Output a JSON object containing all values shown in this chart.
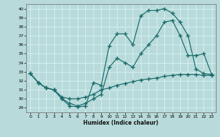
{
  "xlabel": "Humidex (Indice chaleur)",
  "background_color": "#b8dada",
  "grid_color": "#d4eeee",
  "line_color": "#1a6b6b",
  "xlim": [
    -0.5,
    23.5
  ],
  "ylim": [
    28.5,
    40.5
  ],
  "yticks": [
    29,
    30,
    31,
    32,
    33,
    34,
    35,
    36,
    37,
    38,
    39,
    40
  ],
  "xticks": [
    0,
    1,
    2,
    3,
    4,
    5,
    6,
    7,
    8,
    9,
    10,
    11,
    12,
    13,
    14,
    15,
    16,
    17,
    18,
    19,
    20,
    21,
    22,
    23
  ],
  "line1_y": [
    32.8,
    31.8,
    31.2,
    31.0,
    30.0,
    29.2,
    29.1,
    29.2,
    31.8,
    31.5,
    35.9,
    37.2,
    37.2,
    36.0,
    39.2,
    39.8,
    39.8,
    40.0,
    39.5,
    38.5,
    37.0,
    33.3,
    32.8,
    32.7
  ],
  "line2_y": [
    32.8,
    31.8,
    31.2,
    31.0,
    30.0,
    29.5,
    29.2,
    29.5,
    30.0,
    30.5,
    33.5,
    34.5,
    34.0,
    33.5,
    35.0,
    36.0,
    37.0,
    38.5,
    38.7,
    37.0,
    34.8,
    34.8,
    35.0,
    32.7
  ],
  "line3_y": [
    32.8,
    31.8,
    31.2,
    31.0,
    30.2,
    30.0,
    30.0,
    30.2,
    30.5,
    31.0,
    31.2,
    31.5,
    31.7,
    31.9,
    32.1,
    32.2,
    32.3,
    32.5,
    32.6,
    32.7,
    32.7,
    32.7,
    32.6,
    32.6
  ]
}
